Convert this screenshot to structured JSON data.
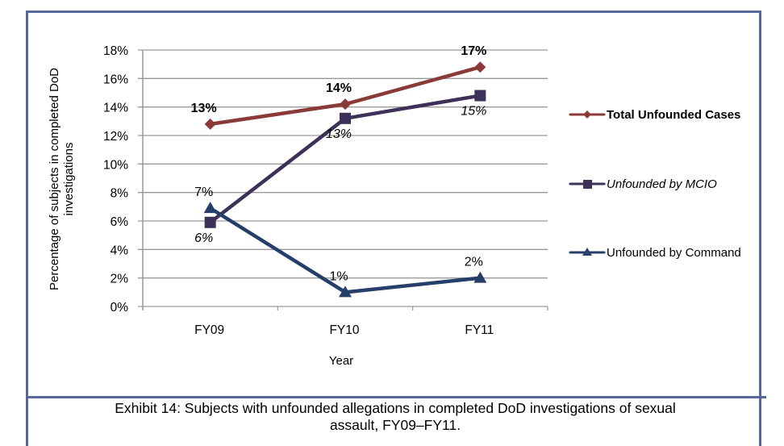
{
  "chart_data": {
    "type": "line",
    "title": "",
    "xlabel": "Year",
    "ylabel": "Percentage of subjects in completed DoD investigations",
    "ylabel_lines": [
      "Percentage of subjects in completed DoD",
      "investigations"
    ],
    "categories": [
      "FY09",
      "FY10",
      "FY11"
    ],
    "ylim": [
      0,
      18
    ],
    "yticks": [
      0,
      2,
      4,
      6,
      8,
      10,
      12,
      14,
      16,
      18
    ],
    "ytick_labels": [
      "0%",
      "2%",
      "4%",
      "6%",
      "8%",
      "10%",
      "12%",
      "14%",
      "16%",
      "18%"
    ],
    "grid": true,
    "legend_position": "right",
    "series": [
      {
        "name": "Total Unfounded Cases",
        "color": "#8b3a3a",
        "marker": "diamond",
        "label_style": "bold",
        "label_position": "above",
        "values": [
          12.8,
          14.2,
          16.8
        ],
        "data_labels": [
          "13%",
          "14%",
          "17%"
        ]
      },
      {
        "name": "Unfounded by MCIO",
        "color": "#3e3158",
        "marker": "square",
        "label_style": "italic",
        "label_position": "below",
        "values": [
          5.9,
          13.2,
          14.8
        ],
        "data_labels": [
          "6%",
          "13%",
          "15%"
        ]
      },
      {
        "name": "Unfounded by Command",
        "color": "#253f6a",
        "marker": "triangle",
        "label_style": "normal",
        "label_position": "above",
        "values": [
          6.9,
          1.0,
          2.0
        ],
        "data_labels": [
          "7%",
          "1%",
          "2%"
        ]
      }
    ]
  },
  "caption": {
    "line1": "Exhibit 14:  Subjects with unfounded allegations in completed DoD investigations of sexual",
    "line2": "assault, FY09–FY11."
  },
  "colors": {
    "frame": "#58679a",
    "grid": "#9a9a9a"
  }
}
